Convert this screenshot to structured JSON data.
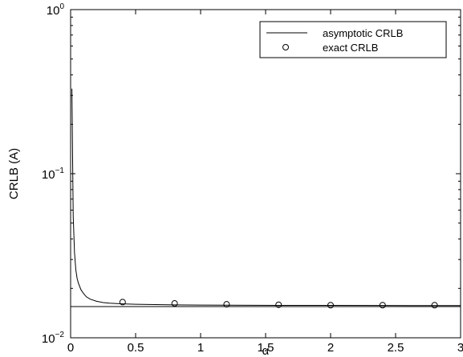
{
  "chart_data": {
    "type": "line",
    "title": "",
    "xlabel": "α",
    "ylabel": "CRLB (A)",
    "x_scale": "linear",
    "y_scale": "log",
    "xlim": [
      0,
      3
    ],
    "ylim": [
      0.01,
      1
    ],
    "grid": false,
    "legend_position": "top-right",
    "x_ticks": [
      {
        "value": 0,
        "label": "0"
      },
      {
        "value": 0.5,
        "label": "0.5"
      },
      {
        "value": 1,
        "label": "1"
      },
      {
        "value": 1.5,
        "label": "1.5"
      },
      {
        "value": 2,
        "label": "2"
      },
      {
        "value": 2.5,
        "label": "2.5"
      },
      {
        "value": 3,
        "label": "3"
      }
    ],
    "y_ticks": [
      {
        "value": 0.01,
        "base": "10",
        "exponent": "−2"
      },
      {
        "value": 0.1,
        "base": "10",
        "exponent": "−1"
      },
      {
        "value": 1,
        "base": "10",
        "exponent": "0"
      }
    ],
    "series": [
      {
        "name": "asymptotic CRLB",
        "style": "solid-line",
        "color": "#000000",
        "x": [
          0.01,
          0.015,
          0.02,
          0.03,
          0.04,
          0.05,
          0.06,
          0.08,
          0.1,
          0.12,
          0.15,
          0.2,
          0.25,
          0.3,
          0.4,
          0.5,
          0.6,
          0.8,
          1.0,
          1.2,
          1.6,
          2.0,
          2.4,
          2.8,
          3.0
        ],
        "y": [
          0.33,
          0.13,
          0.055,
          0.033,
          0.026,
          0.023,
          0.0215,
          0.0196,
          0.0186,
          0.0178,
          0.0172,
          0.0167,
          0.0164,
          0.01625,
          0.0161,
          0.016,
          0.01595,
          0.01588,
          0.01583,
          0.0158,
          0.01577,
          0.01575,
          0.01573,
          0.01572,
          0.01571
        ]
      },
      {
        "name": "exact CRLB",
        "style": "circle-markers",
        "color": "#000000",
        "x": [
          0.4,
          0.8,
          1.2,
          1.6,
          2.0,
          2.4,
          2.8
        ],
        "y": [
          0.0165,
          0.0162,
          0.016,
          0.0159,
          0.0158,
          0.0158,
          0.0158
        ]
      }
    ],
    "reference_line": {
      "y": 0.0155
    }
  }
}
